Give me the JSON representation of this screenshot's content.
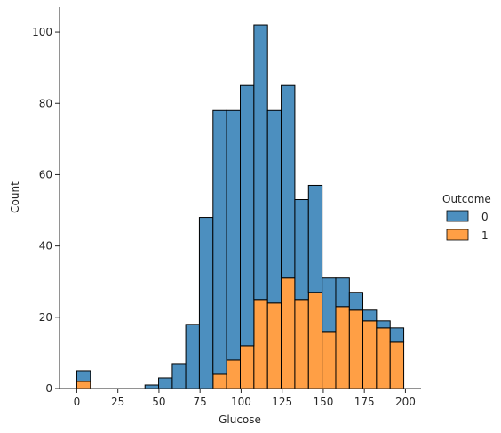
{
  "chart_data": {
    "type": "bar",
    "stacked": true,
    "xlabel": "Glucose",
    "ylabel": "Count",
    "xlim": [
      -10.5,
      209.5
    ],
    "ylim": [
      0,
      107
    ],
    "xticks": [
      0,
      25,
      50,
      75,
      100,
      125,
      150,
      175,
      200
    ],
    "yticks": [
      0,
      20,
      40,
      60,
      80,
      100
    ],
    "grid": false,
    "bins": [
      {
        "start": 0.0,
        "end": 8.3
      },
      {
        "start": 8.3,
        "end": 16.6
      },
      {
        "start": 16.6,
        "end": 24.9
      },
      {
        "start": 24.9,
        "end": 33.2
      },
      {
        "start": 33.2,
        "end": 41.5
      },
      {
        "start": 41.5,
        "end": 49.8
      },
      {
        "start": 49.8,
        "end": 58.1
      },
      {
        "start": 58.1,
        "end": 66.3
      },
      {
        "start": 66.3,
        "end": 74.6
      },
      {
        "start": 74.6,
        "end": 82.9
      },
      {
        "start": 82.9,
        "end": 91.2
      },
      {
        "start": 91.2,
        "end": 99.5
      },
      {
        "start": 99.5,
        "end": 107.8
      },
      {
        "start": 107.8,
        "end": 116.1
      },
      {
        "start": 116.1,
        "end": 124.4
      },
      {
        "start": 124.4,
        "end": 132.7
      },
      {
        "start": 132.7,
        "end": 141.0
      },
      {
        "start": 141.0,
        "end": 149.3
      },
      {
        "start": 149.3,
        "end": 157.6
      },
      {
        "start": 157.6,
        "end": 165.9
      },
      {
        "start": 165.9,
        "end": 174.1
      },
      {
        "start": 174.1,
        "end": 182.4
      },
      {
        "start": 182.4,
        "end": 190.7
      },
      {
        "start": 190.7,
        "end": 199.0
      }
    ],
    "series": [
      {
        "name": "1",
        "color": "#ff9f45",
        "values": [
          2,
          0,
          0,
          0,
          0,
          0,
          0,
          0,
          0,
          0,
          4,
          8,
          12,
          25,
          24,
          31,
          25,
          27,
          16,
          23,
          22,
          19,
          17,
          13
        ]
      },
      {
        "name": "0",
        "color": "#4c8fbf",
        "values": [
          3,
          0,
          0,
          0,
          0,
          1,
          3,
          7,
          18,
          48,
          74,
          70,
          73,
          77,
          54,
          54,
          28,
          30,
          15,
          8,
          5,
          3,
          2,
          4
        ]
      }
    ],
    "legend": {
      "title": "Outcome",
      "placement": "right",
      "entries": [
        "0",
        "1"
      ]
    }
  }
}
